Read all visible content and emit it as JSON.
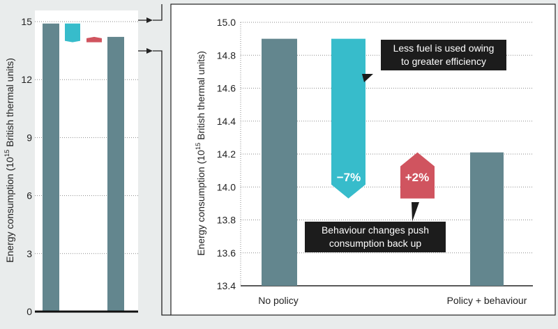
{
  "chart_data": [
    {
      "type": "bar",
      "chart_id": "overview",
      "ylabel": "Energy consumption (10^15 British thermal units)",
      "ylabel_parts": [
        "Energy consumption (10",
        "15",
        " British thermal units)"
      ],
      "ylim": [
        0,
        15
      ],
      "yticks": [
        "0",
        "3",
        "6",
        "9",
        "12",
        "15"
      ],
      "bars": [
        {
          "role": "no-policy",
          "base": 0,
          "top": 14.9
        },
        {
          "role": "efficiency",
          "base": 13.93,
          "top": 14.9
        },
        {
          "role": "behaviour",
          "base": 13.93,
          "top": 14.21
        },
        {
          "role": "policy-behaviour",
          "base": 0,
          "top": 14.21
        }
      ]
    },
    {
      "type": "bar",
      "chart_id": "detail",
      "ylabel": "Energy consumption (10^15 British thermal units)",
      "ylabel_parts": [
        "Energy consumption (10",
        "15",
        " British thermal units)"
      ],
      "ylim": [
        13.4,
        15.0
      ],
      "yticks": [
        "13.4",
        "13.6",
        "13.8",
        "14.0",
        "14.2",
        "14.4",
        "14.6",
        "14.8",
        "15.0"
      ],
      "categories": [
        "No policy",
        "Policy + behaviour"
      ],
      "bars": [
        {
          "category": "No policy",
          "base": 13.4,
          "top": 14.9
        },
        {
          "category": "efficiency",
          "base": 13.93,
          "top": 14.9
        },
        {
          "category": "behaviour",
          "base": 13.93,
          "top": 14.21
        },
        {
          "category": "Policy + behaviour",
          "base": 13.4,
          "top": 14.21
        }
      ],
      "annotations": {
        "efficiency_change": "−7%",
        "behaviour_change": "+2%",
        "efficiency_callout": [
          "Less fuel is used owing",
          "to greater efficiency"
        ],
        "behaviour_callout": [
          "Behaviour changes push",
          "consumption back up"
        ]
      },
      "grid": true
    }
  ],
  "colors": {
    "slate": "#63868e",
    "teal": "#37bccb",
    "red": "#d0545f",
    "panel_bg": "#e9ecec",
    "callout_bg": "#1c1c1c",
    "grid": "#8a8a8a"
  }
}
